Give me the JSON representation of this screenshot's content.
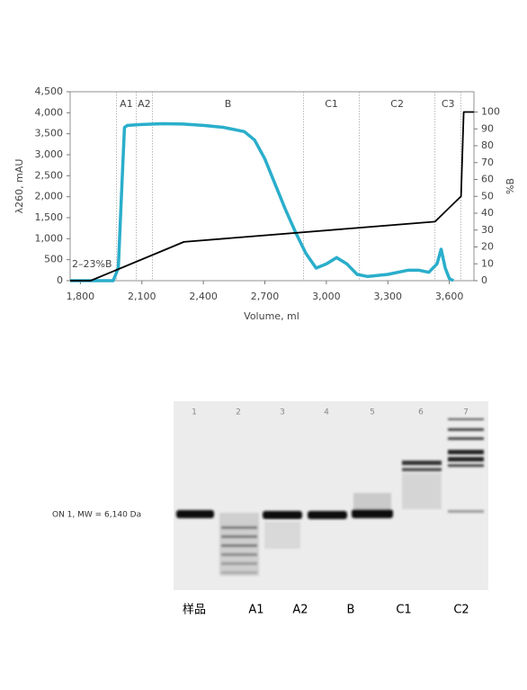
{
  "chart_data": {
    "type": "line",
    "xlabel": "Volume, ml",
    "ylabel": "λ260, mAU",
    "y2label": "%B",
    "annotation": "2–23%B",
    "xlim": [
      1750,
      3720
    ],
    "xticks": [
      {
        "value": 1800,
        "label": "1,800"
      },
      {
        "value": 2100,
        "label": "2,100"
      },
      {
        "value": 2400,
        "label": "2,400"
      },
      {
        "value": 2700,
        "label": "2,700"
      },
      {
        "value": 3000,
        "label": "3,000"
      },
      {
        "value": 3300,
        "label": "3,300"
      },
      {
        "value": 3600,
        "label": "3,600"
      }
    ],
    "ylim": [
      0,
      4500
    ],
    "yticks": [
      0,
      500,
      {
        "value": 1000,
        "label": "1,000"
      },
      {
        "value": 1500,
        "label": "1,500"
      },
      {
        "value": 2000,
        "label": "2,000"
      },
      {
        "value": 2500,
        "label": "2,500"
      },
      {
        "value": 3000,
        "label": "3,000"
      },
      {
        "value": 3500,
        "label": "3,500"
      },
      {
        "value": 4000,
        "label": "4,000"
      },
      {
        "value": 4500,
        "label": "4,500"
      }
    ],
    "y2lim": [
      0,
      112
    ],
    "y2ticks": [
      0,
      10,
      20,
      30,
      40,
      50,
      60,
      70,
      80,
      90,
      100
    ],
    "fraction_bounds": [
      1976,
      2072,
      2151,
      2889,
      3161,
      3530,
      3657
    ],
    "fraction_labels": [
      "A1",
      "A2",
      "B",
      "C1",
      "C2",
      "C3"
    ],
    "series": [
      {
        "color": "#2aaecb",
        "x": [
          1750,
          1960,
          1985,
          2000,
          2015,
          2030,
          2100,
          2200,
          2300,
          2400,
          2500,
          2600,
          2650,
          2700,
          2750,
          2800,
          2850,
          2900,
          2950,
          3000,
          3050,
          3100,
          3150,
          3200,
          3300,
          3400,
          3450,
          3500,
          3540,
          3560,
          3580,
          3600,
          3620
        ],
        "values": [
          0,
          0,
          300,
          2000,
          3650,
          3700,
          3720,
          3740,
          3730,
          3700,
          3650,
          3550,
          3350,
          2900,
          2300,
          1700,
          1150,
          650,
          300,
          400,
          550,
          400,
          150,
          100,
          150,
          250,
          250,
          200,
          400,
          750,
          300,
          50,
          0
        ]
      },
      {
        "color": "#000000",
        "axis": "y2",
        "x": [
          1750,
          1850,
          2305,
          3530,
          3657,
          3670,
          3720
        ],
        "values": [
          0,
          0,
          23,
          35,
          50,
          100,
          100
        ]
      }
    ]
  },
  "gel": {
    "lanes": [
      "1",
      "2",
      "3",
      "4",
      "5",
      "6",
      "7"
    ],
    "marker_label": "ON 1, MW = 6,140 Da",
    "sample_labels": [
      "样品",
      "A1",
      "A2",
      "B",
      "C1",
      "C2"
    ]
  }
}
